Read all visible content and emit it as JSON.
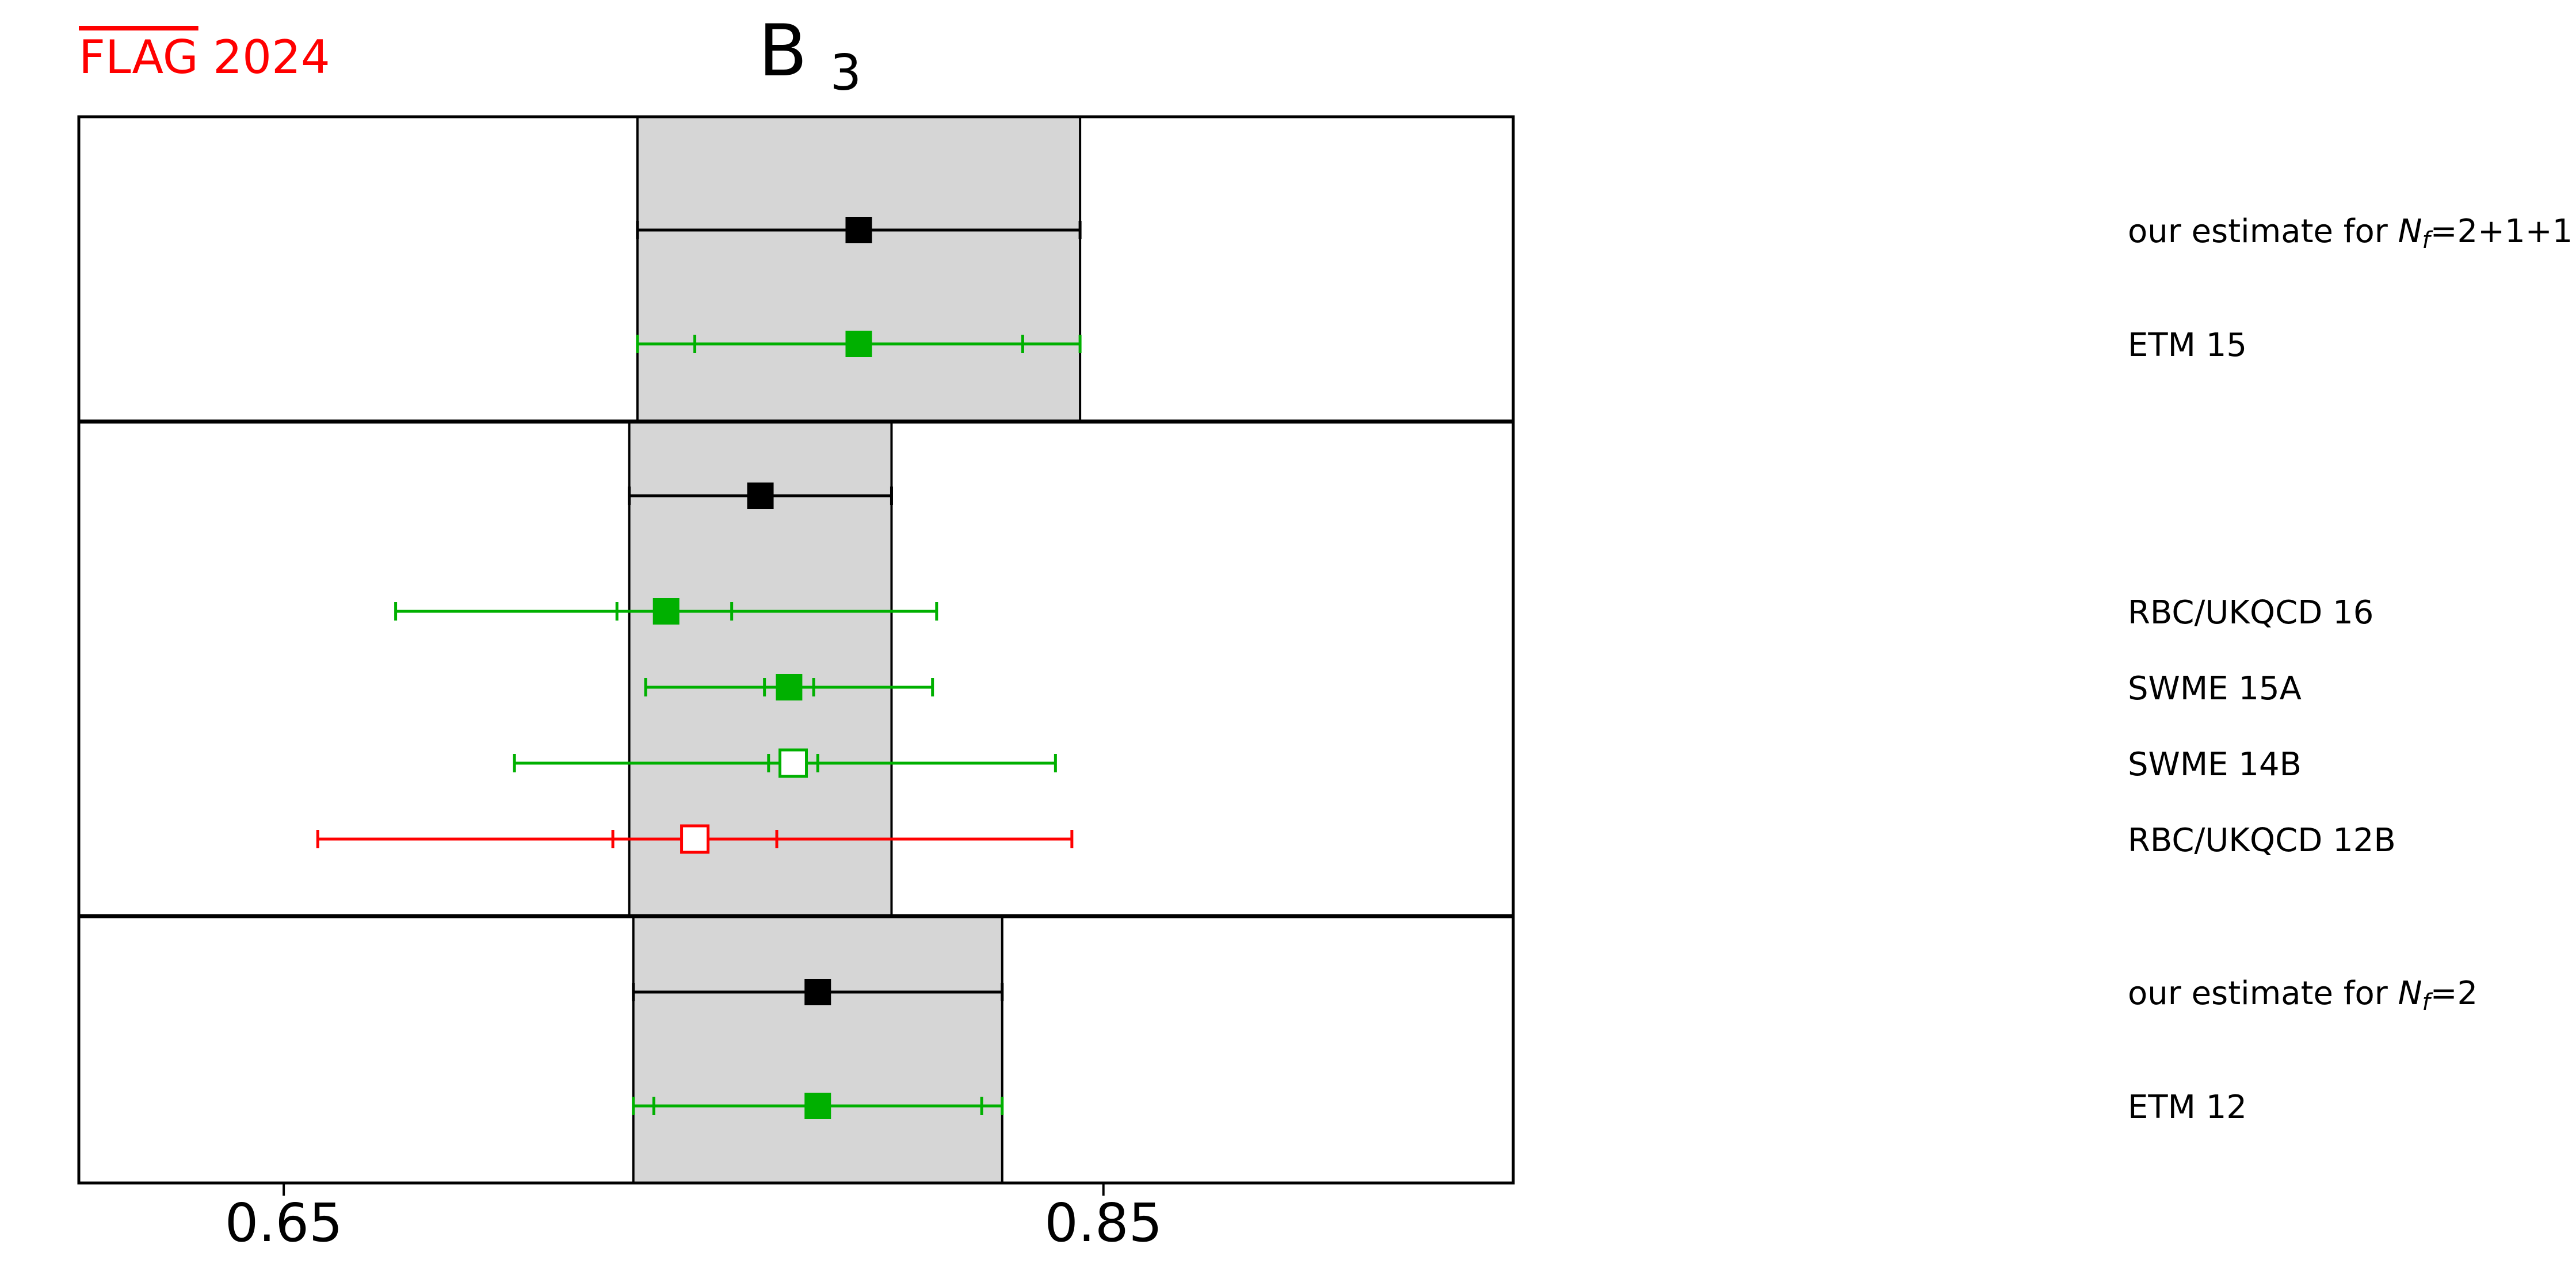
{
  "logo": {
    "flag": "FLAG",
    "year": "2024",
    "color": "#ff0000"
  },
  "chart_data": {
    "type": "forest",
    "title": "B",
    "title_subscript": "3",
    "xlim": [
      0.6,
      0.95
    ],
    "xticks": [
      0.65,
      0.85
    ],
    "xtick_labels": [
      "0.65",
      "0.85"
    ],
    "grid": false,
    "colors": {
      "estimate": "#000000",
      "green": "#00b000",
      "red": "#ff0000",
      "band": "#d6d6d6"
    },
    "panels": [
      {
        "band": [
          0.7363,
          0.8443
        ],
        "entries": [
          {
            "label_prefix": "our estimate for ",
            "label_math": "N",
            "label_sub": "f",
            "label_suffix": "=2+1+1",
            "value": 0.7903,
            "inner": null,
            "outer": [
              0.7363,
              0.8443
            ],
            "color": "#000000",
            "filled": true,
            "row": 1
          },
          {
            "label_prefix": "ETM 15",
            "label_math": "",
            "label_sub": "",
            "label_suffix": "",
            "value": 0.7903,
            "inner": [
              0.7503,
              0.8303
            ],
            "outer": [
              0.7363,
              0.8443
            ],
            "color": "#00b000",
            "filled": true,
            "row": 2
          }
        ]
      },
      {
        "band": [
          0.7343,
          0.7983
        ],
        "entries": [
          {
            "label_prefix": "",
            "label_math": "",
            "label_sub": "",
            "label_suffix": "",
            "value": 0.7663,
            "inner": null,
            "outer": [
              0.7343,
              0.7983
            ],
            "color": "#000000",
            "filled": true,
            "row": 1
          },
          {
            "label_prefix": "RBC/UKQCD 16",
            "label_math": "",
            "label_sub": "",
            "label_suffix": "",
            "value": 0.7433,
            "inner": [
              0.7313,
              0.7593
            ],
            "outer": [
              0.6773,
              0.8093
            ],
            "color": "#00b000",
            "filled": true,
            "row": 2
          },
          {
            "label_prefix": "SWME 15A",
            "label_math": "",
            "label_sub": "",
            "label_suffix": "",
            "value": 0.7733,
            "inner": [
              0.7673,
              0.7793
            ],
            "outer": [
              0.7383,
              0.8083
            ],
            "color": "#00b000",
            "filled": true,
            "row": 3
          },
          {
            "label_prefix": "SWME 14B",
            "label_math": "",
            "label_sub": "",
            "label_suffix": "",
            "value": 0.7743,
            "inner": [
              0.7683,
              0.7803
            ],
            "outer": [
              0.7063,
              0.8383
            ],
            "color": "#00b000",
            "filled": false,
            "row": 4
          },
          {
            "label_prefix": "RBC/UKQCD 12B",
            "label_math": "",
            "label_sub": "",
            "label_suffix": "",
            "value": 0.7503,
            "inner": [
              0.7303,
              0.7703
            ],
            "outer": [
              0.6583,
              0.8423
            ],
            "color": "#ff0000",
            "filled": false,
            "row": 5
          }
        ]
      },
      {
        "band": [
          0.7353,
          0.8253
        ],
        "entries": [
          {
            "label_prefix": "our estimate for ",
            "label_math": "N",
            "label_sub": "f",
            "label_suffix": "=2",
            "value": 0.7803,
            "inner": null,
            "outer": [
              0.7353,
              0.8253
            ],
            "color": "#000000",
            "filled": true,
            "row": 1
          },
          {
            "label_prefix": "ETM 12",
            "label_math": "",
            "label_sub": "",
            "label_suffix": "",
            "value": 0.7803,
            "inner": [
              0.7403,
              0.8203
            ],
            "outer": [
              0.7353,
              0.8253
            ],
            "color": "#00b000",
            "filled": true,
            "row": 2
          }
        ]
      }
    ]
  }
}
